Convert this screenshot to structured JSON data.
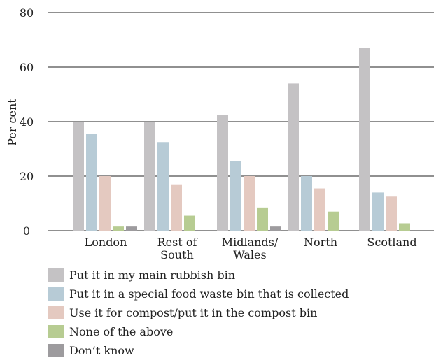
{
  "chart_data": {
    "type": "bar",
    "ylabel": "Per cent",
    "ylim": [
      0,
      80
    ],
    "yticks": [
      0,
      20,
      40,
      60,
      80
    ],
    "grid": true,
    "legend_position": "bottom",
    "categories": [
      [
        "London"
      ],
      [
        "Rest of",
        "South"
      ],
      [
        "Midlands/",
        "Wales"
      ],
      [
        "North"
      ],
      [
        "Scotland"
      ]
    ],
    "series": [
      {
        "name": "Put it in my main rubbish bin",
        "color": "#c4c2c4",
        "values": [
          40,
          40,
          42.5,
          54,
          67
        ]
      },
      {
        "name": "Put it in a special food waste bin that is collected",
        "color": "#b7cbd6",
        "values": [
          35.5,
          32.5,
          25.5,
          20,
          14
        ]
      },
      {
        "name": "Use it for compost/put it in the compost bin",
        "color": "#e4c9c0",
        "values": [
          20,
          17,
          20,
          15.5,
          12.5
        ]
      },
      {
        "name": "None of the above",
        "color": "#b7cc92",
        "values": [
          1.5,
          5.5,
          8.5,
          7,
          2.7
        ]
      },
      {
        "name": "Don’t know",
        "color": "#9d9b9e",
        "values": [
          1.5,
          0,
          1.5,
          0,
          0
        ]
      }
    ]
  }
}
